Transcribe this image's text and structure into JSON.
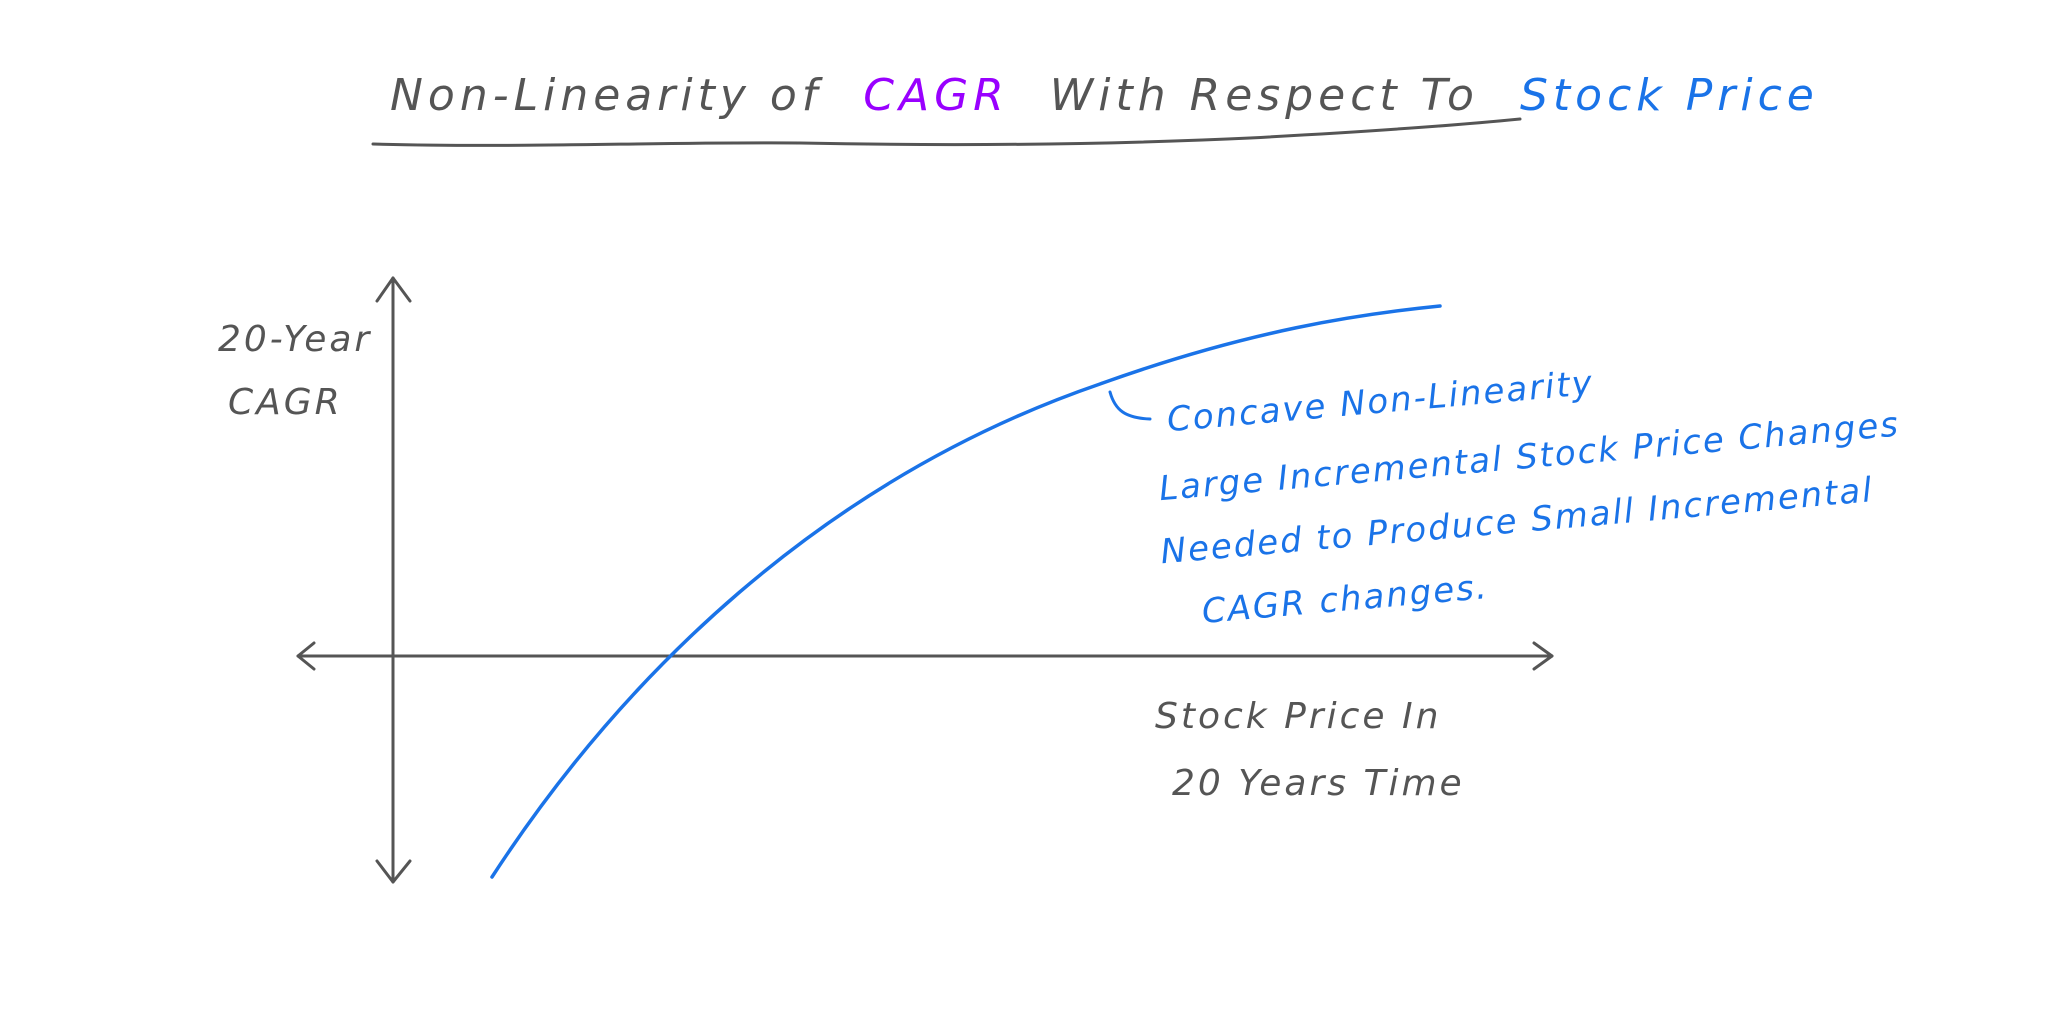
{
  "title": {
    "part1": "Non-Linearity of",
    "part2": "CAGR",
    "part3": "With Respect To",
    "part4": "Stock Price"
  },
  "axes": {
    "y_label_line1": "20-Year",
    "y_label_line2": "CAGR",
    "x_label_line1": "Stock Price In",
    "x_label_line2": "20 Years Time"
  },
  "annotation": {
    "line1": "Concave Non-Linearity",
    "line2": "Large Incremental Stock Price Changes",
    "line3": "Needed to Produce Small Incremental",
    "line4": "CAGR changes."
  },
  "colors": {
    "ink": "#555555",
    "curve": "#1a73e8",
    "note": "#1a73e8",
    "cagr": "#9900ff",
    "stock_price": "#1a73e8"
  }
}
